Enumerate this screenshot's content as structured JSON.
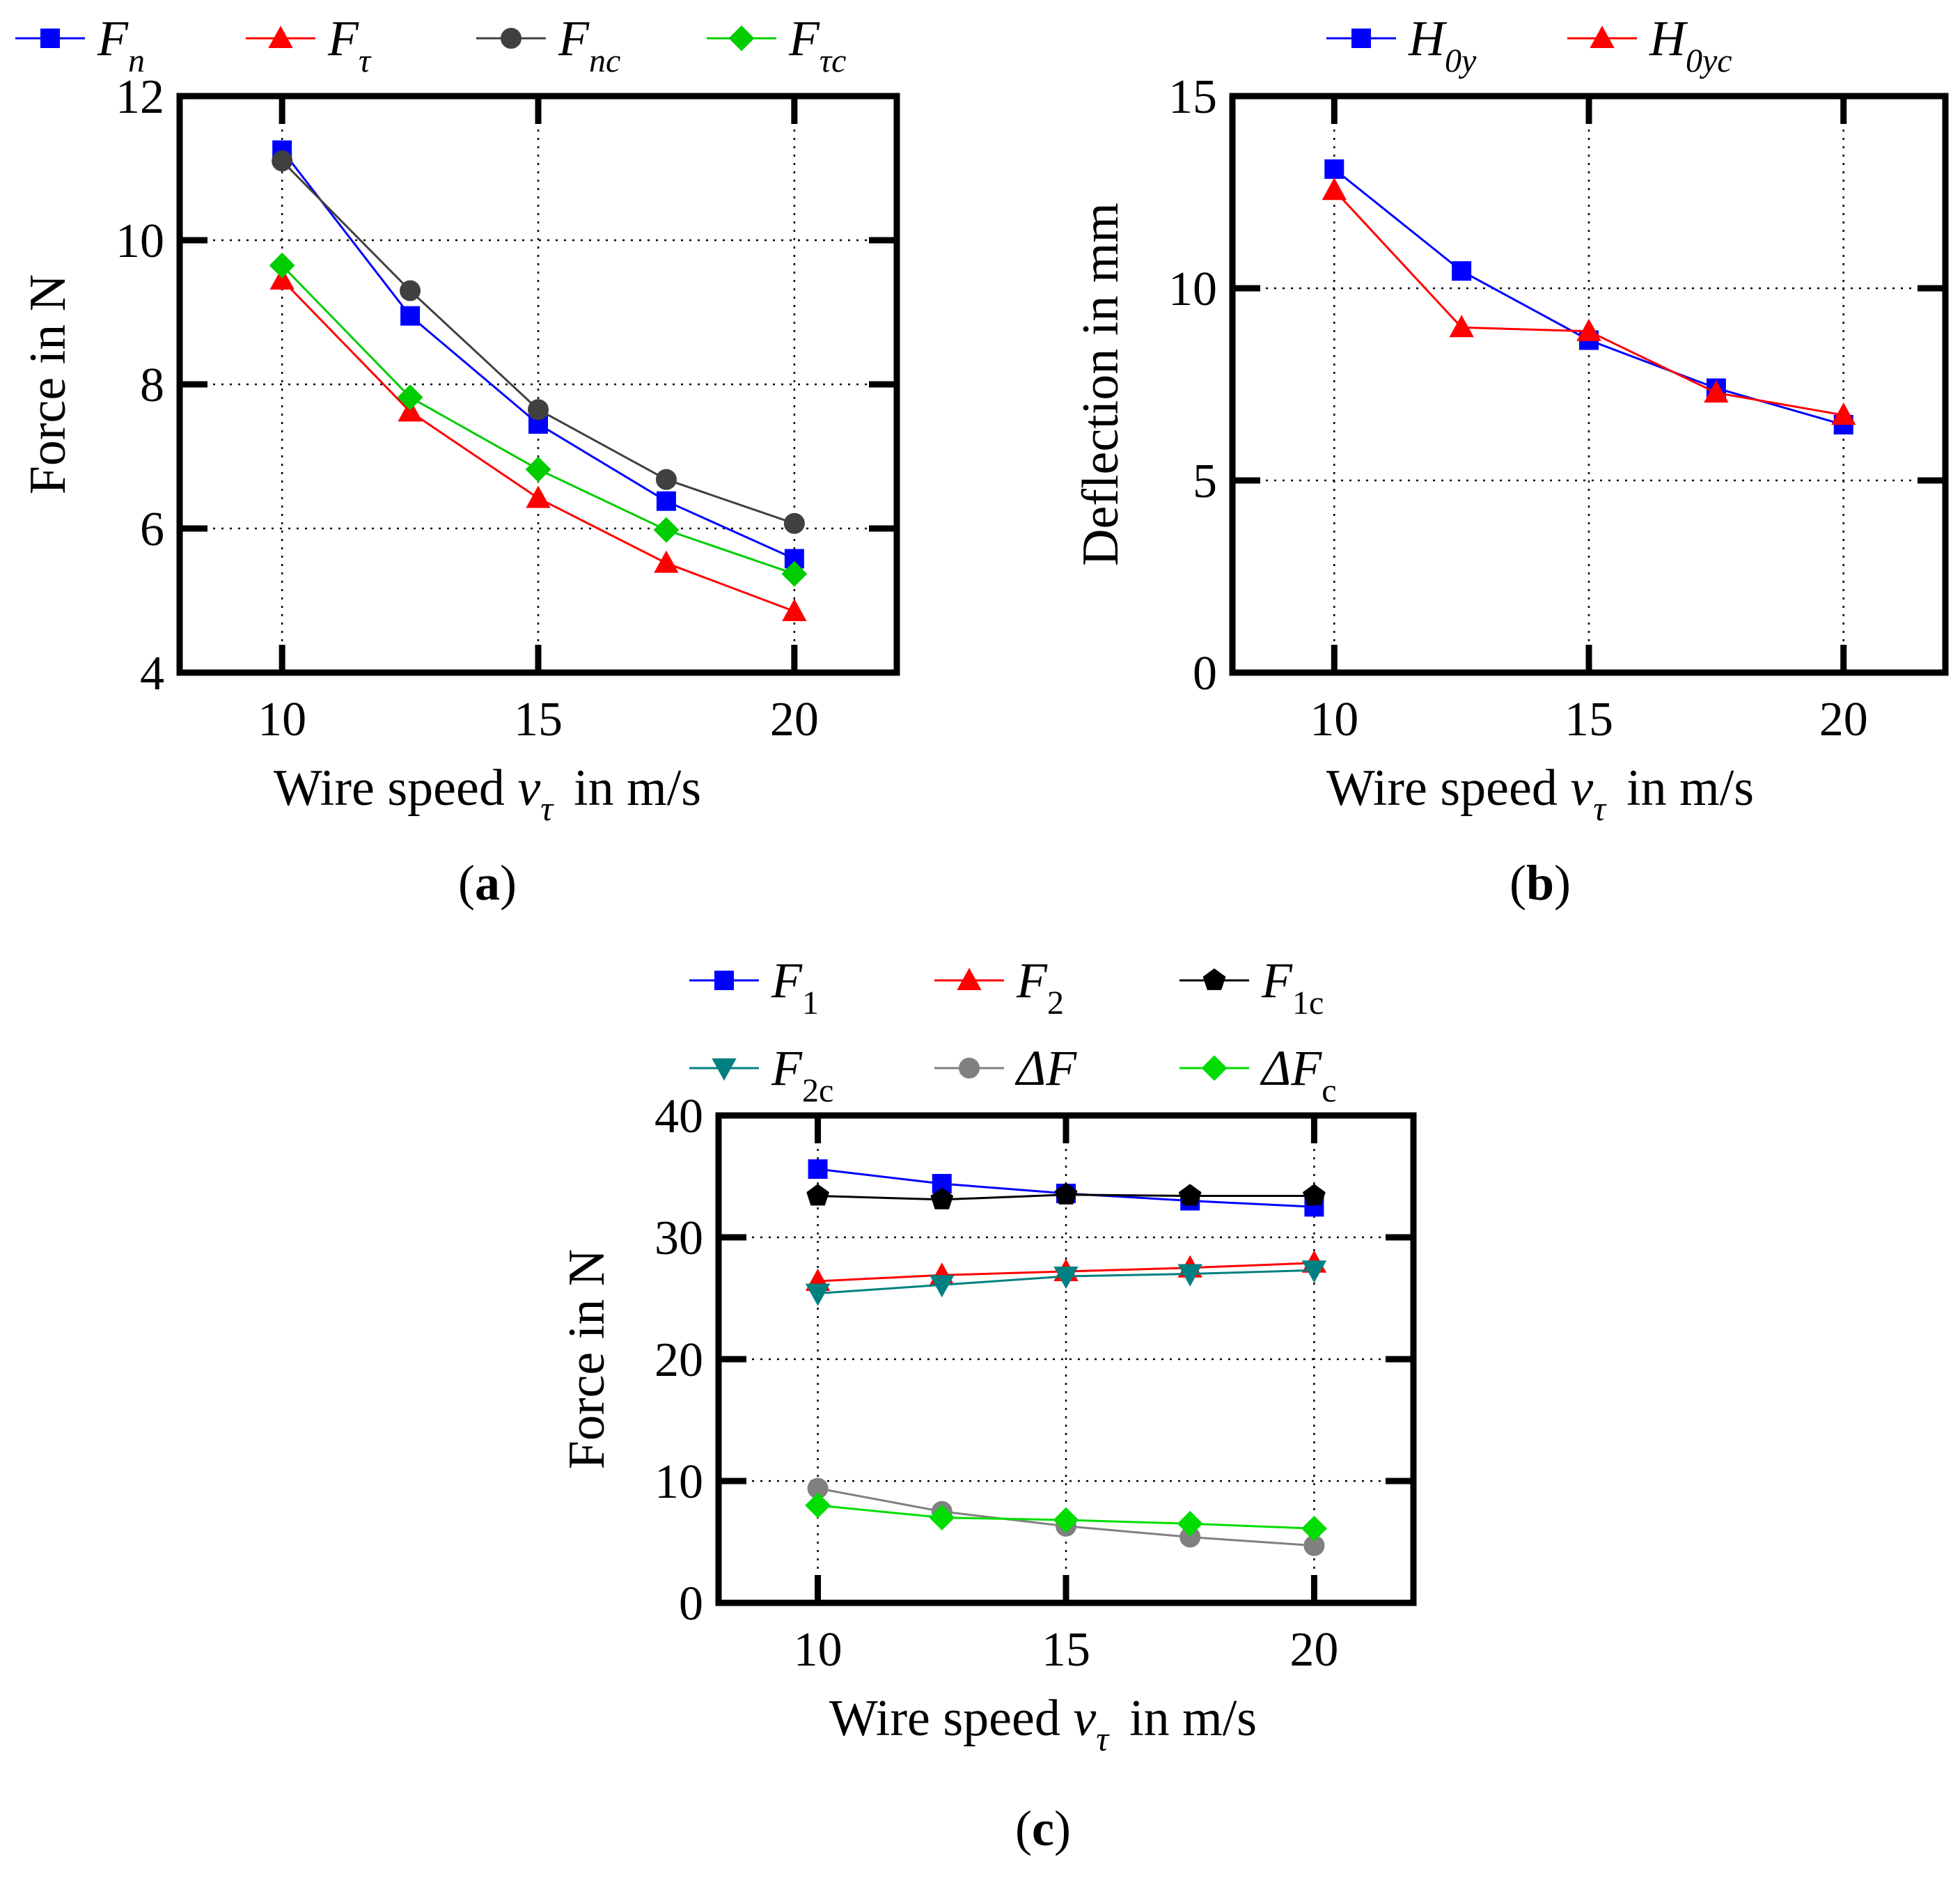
{
  "chart_data": [
    {
      "id": "a",
      "type": "line",
      "panel_label": "a",
      "xlabel_pre": "Wire speed",
      "xlabel_var": "v",
      "xlabel_sub": "τ",
      "xlabel_post": "in m/s",
      "ylabel": "Force in N",
      "xlim": [
        8,
        22
      ],
      "ylim": [
        4,
        12
      ],
      "xticks": [
        10,
        15,
        20
      ],
      "yticks": [
        4,
        6,
        8,
        10,
        12
      ],
      "grid": true,
      "x": [
        10,
        12.5,
        15,
        17.5,
        20
      ],
      "series": [
        {
          "key": "Fn",
          "name": "F",
          "sub": "n",
          "sub_italic": true,
          "color": "#0000ff",
          "marker": "square",
          "values": [
            11.25,
            8.95,
            7.45,
            6.38,
            5.58
          ]
        },
        {
          "key": "Ft",
          "name": "F",
          "sub": "τ",
          "sub_italic": true,
          "color": "#ff0000",
          "marker": "triangle",
          "values": [
            9.45,
            7.62,
            6.42,
            5.52,
            4.85
          ]
        },
        {
          "key": "Fnc",
          "name": "F",
          "sub": "nc",
          "sub_italic": true,
          "color": "#404040",
          "marker": "circle",
          "values": [
            11.1,
            9.3,
            7.65,
            6.68,
            6.07
          ]
        },
        {
          "key": "Ftc",
          "name": "F",
          "sub": "τc",
          "sub_italic": true,
          "color": "#00cc00",
          "marker": "diamond",
          "values": [
            9.65,
            7.82,
            6.82,
            5.98,
            5.37
          ]
        }
      ]
    },
    {
      "id": "b",
      "type": "line",
      "panel_label": "b",
      "xlabel_pre": "Wire speed",
      "xlabel_var": "v",
      "xlabel_sub": "τ",
      "xlabel_post": "in m/s",
      "ylabel": "Deflection in mm",
      "xlim": [
        8,
        22
      ],
      "ylim": [
        0,
        15
      ],
      "xticks": [
        10,
        15,
        20
      ],
      "yticks": [
        0,
        5,
        10,
        15
      ],
      "grid": true,
      "x": [
        10,
        12.5,
        15,
        17.5,
        20
      ],
      "series": [
        {
          "key": "H0y",
          "name": "H",
          "sub": "0y",
          "sub_italic": true,
          "color": "#0000ff",
          "marker": "square",
          "values": [
            13.1,
            10.45,
            8.65,
            7.4,
            6.45
          ]
        },
        {
          "key": "H0yc",
          "name": "H",
          "sub": "0yc",
          "sub_italic": true,
          "color": "#ff0000",
          "marker": "triangle",
          "values": [
            12.55,
            8.98,
            8.88,
            7.28,
            6.7
          ]
        }
      ]
    },
    {
      "id": "c",
      "type": "line",
      "panel_label": "c",
      "xlabel_pre": "Wire speed",
      "xlabel_var": "v",
      "xlabel_sub": "τ",
      "xlabel_post": "in m/s",
      "ylabel": "Force in N",
      "xlim": [
        8,
        22
      ],
      "ylim": [
        0,
        40
      ],
      "xticks": [
        10,
        15,
        20
      ],
      "yticks": [
        0,
        10,
        20,
        30,
        40
      ],
      "grid": true,
      "x": [
        10,
        12.5,
        15,
        17.5,
        20
      ],
      "series": [
        {
          "key": "F1",
          "name": "F",
          "sub": "1",
          "sub_italic": false,
          "color": "#0000ff",
          "marker": "square",
          "values": [
            35.6,
            34.4,
            33.6,
            33.0,
            32.5
          ]
        },
        {
          "key": "F2",
          "name": "F",
          "sub": "2",
          "sub_italic": false,
          "color": "#ff0000",
          "marker": "triangle",
          "values": [
            26.4,
            26.9,
            27.2,
            27.5,
            27.9
          ]
        },
        {
          "key": "F1c",
          "name": "F",
          "sub": "1c",
          "sub_italic": false,
          "color": "#000000",
          "marker": "pentagon",
          "values": [
            33.4,
            33.1,
            33.5,
            33.4,
            33.4
          ]
        },
        {
          "key": "F2c",
          "name": "F",
          "sub": "2c",
          "sub_italic": false,
          "color": "#008080",
          "marker": "triangle-down",
          "values": [
            25.4,
            26.1,
            26.8,
            27.0,
            27.3
          ]
        },
        {
          "key": "dF",
          "name": "ΔF",
          "sub": "",
          "sub_italic": false,
          "color": "#808080",
          "marker": "circle",
          "values": [
            9.4,
            7.5,
            6.3,
            5.4,
            4.7
          ]
        },
        {
          "key": "dFc",
          "name": "ΔF",
          "sub": "c",
          "sub_italic": false,
          "color": "#00dd00",
          "marker": "diamond",
          "values": [
            8.0,
            7.0,
            6.8,
            6.5,
            6.1
          ]
        }
      ]
    }
  ]
}
